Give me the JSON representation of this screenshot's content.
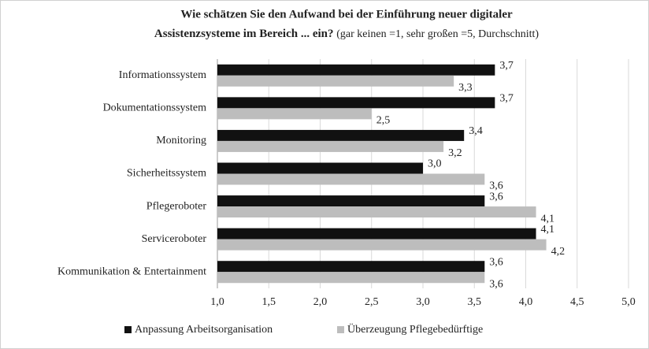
{
  "chart_data": {
    "type": "barh",
    "title": [
      "Wie schätzen Sie den Aufwand  bei der Einführung  neuer digitaler",
      "Assistenzsysteme im Bereich ... ein?"
    ],
    "subtitle": "(gar keinen =1, sehr großen =5, Durchschnitt)",
    "categories": [
      "Informationssystem",
      "Dokumentationssystem",
      "Monitoring",
      "Sicherheitssystem",
      "Pflegeroboter",
      "Serviceroboter",
      "Kommunikation & Entertainment"
    ],
    "series": [
      {
        "name": "Anpassung Arbeitsorganisation",
        "color": "#111111",
        "values": [
          3.7,
          3.7,
          3.4,
          3.0,
          3.6,
          4.1,
          3.6
        ],
        "value_labels": [
          "3,7",
          "3,7",
          "3,4",
          "3,0",
          "3,6",
          "4,1",
          "3,6"
        ]
      },
      {
        "name": "Überzeugung Pflegebedürftige",
        "color": "#bdbdbd",
        "values": [
          3.3,
          2.5,
          3.2,
          3.6,
          4.1,
          4.2,
          3.6
        ],
        "value_labels": [
          "3,3",
          "2,5",
          "3,2",
          "3,6",
          "4,1",
          "4,2",
          "3,6"
        ]
      }
    ],
    "xlim": [
      1.0,
      5.0
    ],
    "xticks": [
      {
        "value": 1.0,
        "label": "1,0"
      },
      {
        "value": 1.5,
        "label": "1,5"
      },
      {
        "value": 2.0,
        "label": "2,0"
      },
      {
        "value": 2.5,
        "label": "2,5"
      },
      {
        "value": 3.0,
        "label": "3,0"
      },
      {
        "value": 3.5,
        "label": "3,5"
      },
      {
        "value": 4.0,
        "label": "4,0"
      },
      {
        "value": 4.5,
        "label": "4,5"
      },
      {
        "value": 5.0,
        "label": "5,0"
      }
    ],
    "grid": true,
    "legend": "bottom"
  }
}
